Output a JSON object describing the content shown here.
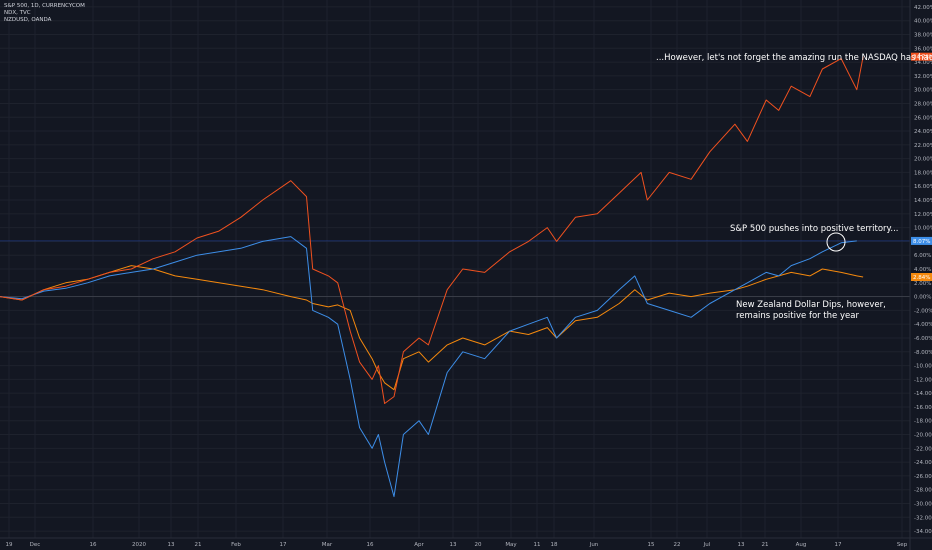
{
  "legend": {
    "symbols": [
      "S&P 500, 1D, CURRENCYCOM",
      "NDX, TVC",
      "NZDUSD, OANDA"
    ]
  },
  "annotations": {
    "nasdaq": "...However, let's not forget the amazing run the NASDAQ has had.",
    "spx": "S&P 500 pushes into positive territory...",
    "nzd_line1": "New Zealand Dollar Dips, however,",
    "nzd_line2": "remains positive for the year"
  },
  "price_labels": {
    "ndx": "34.78%",
    "spx": "8.07%",
    "nzd": "2.84%"
  },
  "colors": {
    "background": "#131722",
    "grid": "#1e222d",
    "ndx": "#f0511f",
    "spx": "#3d8ee8",
    "nzd": "#f5890d",
    "axis_text": "#b2b5be"
  },
  "chart_data": {
    "type": "line",
    "title": "",
    "y_unit": "%",
    "ylim": [
      -35,
      43
    ],
    "y_ticks": [
      "42.00%",
      "40.00%",
      "38.00%",
      "36.00%",
      "34.00%",
      "32.00%",
      "30.00%",
      "28.00%",
      "26.00%",
      "24.00%",
      "22.00%",
      "20.00%",
      "18.00%",
      "16.00%",
      "14.00%",
      "12.00%",
      "10.00%",
      "8.00%",
      "6.00%",
      "4.00%",
      "2.00%",
      "0.00%",
      "-2.00%",
      "-4.00%",
      "-6.00%",
      "-8.00%",
      "-10.00%",
      "-12.00%",
      "-14.00%",
      "-16.00%",
      "-18.00%",
      "-20.00%",
      "-22.00%",
      "-24.00%",
      "-26.00%",
      "-28.00%",
      "-30.00%",
      "-32.00%",
      "-34.00%"
    ],
    "x_ticks": [
      "19",
      "Dec",
      "16",
      "2020",
      "13",
      "21",
      "Feb",
      "17",
      "Mar",
      "16",
      "Apr",
      "13",
      "20",
      "May",
      "11",
      "18",
      "Jun",
      "15",
      "22",
      "Jul",
      "13",
      "21",
      "Aug",
      "17",
      "Sep"
    ],
    "x_range": [
      "2019-11-18",
      "2020-09-04"
    ],
    "grid": true,
    "series": [
      {
        "name": "NDX",
        "points": [
          [
            "2019-11-18",
            0
          ],
          [
            "2019-11-25",
            -0.5
          ],
          [
            "2019-12-02",
            1
          ],
          [
            "2019-12-09",
            1.5
          ],
          [
            "2019-12-16",
            2.5
          ],
          [
            "2019-12-23",
            3.5
          ],
          [
            "2019-12-30",
            4
          ],
          [
            "2020-01-06",
            5.5
          ],
          [
            "2020-01-13",
            6.5
          ],
          [
            "2020-01-20",
            8.5
          ],
          [
            "2020-01-27",
            9.5
          ],
          [
            "2020-02-03",
            11.5
          ],
          [
            "2020-02-10",
            14
          ],
          [
            "2020-02-19",
            16.8
          ],
          [
            "2020-02-24",
            14.5
          ],
          [
            "2020-02-26",
            4
          ],
          [
            "2020-03-02",
            3
          ],
          [
            "2020-03-05",
            2
          ],
          [
            "2020-03-09",
            -5
          ],
          [
            "2020-03-12",
            -9.5
          ],
          [
            "2020-03-16",
            -12
          ],
          [
            "2020-03-18",
            -10
          ],
          [
            "2020-03-20",
            -15.5
          ],
          [
            "2020-03-23",
            -14.5
          ],
          [
            "2020-03-26",
            -8
          ],
          [
            "2020-03-31",
            -6
          ],
          [
            "2020-04-03",
            -7
          ],
          [
            "2020-04-09",
            1
          ],
          [
            "2020-04-14",
            4
          ],
          [
            "2020-04-21",
            3.5
          ],
          [
            "2020-04-29",
            6.5
          ],
          [
            "2020-05-05",
            8
          ],
          [
            "2020-05-11",
            10
          ],
          [
            "2020-05-14",
            8
          ],
          [
            "2020-05-20",
            11.5
          ],
          [
            "2020-05-27",
            12
          ],
          [
            "2020-06-03",
            15
          ],
          [
            "2020-06-10",
            18
          ],
          [
            "2020-06-12",
            14
          ],
          [
            "2020-06-19",
            18
          ],
          [
            "2020-06-26",
            17
          ],
          [
            "2020-07-02",
            21
          ],
          [
            "2020-07-10",
            25
          ],
          [
            "2020-07-14",
            22.5
          ],
          [
            "2020-07-20",
            28.5
          ],
          [
            "2020-07-24",
            27
          ],
          [
            "2020-07-28",
            30.5
          ],
          [
            "2020-08-03",
            29
          ],
          [
            "2020-08-07",
            33
          ],
          [
            "2020-08-13",
            34.5
          ],
          [
            "2020-08-18",
            30
          ],
          [
            "2020-08-20",
            34.78
          ]
        ]
      },
      {
        "name": "S&P 500",
        "points": [
          [
            "2019-11-18",
            0
          ],
          [
            "2019-11-25",
            -0.3
          ],
          [
            "2019-12-02",
            0.8
          ],
          [
            "2019-12-09",
            1.2
          ],
          [
            "2019-12-16",
            2
          ],
          [
            "2019-12-23",
            3
          ],
          [
            "2019-12-30",
            3.5
          ],
          [
            "2020-01-06",
            4
          ],
          [
            "2020-01-13",
            5
          ],
          [
            "2020-01-20",
            6
          ],
          [
            "2020-01-27",
            6.5
          ],
          [
            "2020-02-03",
            7
          ],
          [
            "2020-02-10",
            8
          ],
          [
            "2020-02-19",
            8.7
          ],
          [
            "2020-02-24",
            7
          ],
          [
            "2020-02-26",
            -2
          ],
          [
            "2020-03-02",
            -3
          ],
          [
            "2020-03-05",
            -4
          ],
          [
            "2020-03-09",
            -12
          ],
          [
            "2020-03-12",
            -19
          ],
          [
            "2020-03-16",
            -22
          ],
          [
            "2020-03-18",
            -20
          ],
          [
            "2020-03-20",
            -24
          ],
          [
            "2020-03-23",
            -29
          ],
          [
            "2020-03-26",
            -20
          ],
          [
            "2020-03-31",
            -18
          ],
          [
            "2020-04-03",
            -20
          ],
          [
            "2020-04-09",
            -11
          ],
          [
            "2020-04-14",
            -8
          ],
          [
            "2020-04-21",
            -9
          ],
          [
            "2020-04-29",
            -5
          ],
          [
            "2020-05-05",
            -4
          ],
          [
            "2020-05-11",
            -3
          ],
          [
            "2020-05-14",
            -6
          ],
          [
            "2020-05-20",
            -3
          ],
          [
            "2020-05-27",
            -2
          ],
          [
            "2020-06-03",
            1
          ],
          [
            "2020-06-08",
            3
          ],
          [
            "2020-06-12",
            -1
          ],
          [
            "2020-06-19",
            -2
          ],
          [
            "2020-06-26",
            -3
          ],
          [
            "2020-07-02",
            -1
          ],
          [
            "2020-07-10",
            1
          ],
          [
            "2020-07-14",
            2
          ],
          [
            "2020-07-20",
            3.5
          ],
          [
            "2020-07-24",
            3
          ],
          [
            "2020-07-28",
            4.5
          ],
          [
            "2020-08-03",
            5.5
          ],
          [
            "2020-08-07",
            6.5
          ],
          [
            "2020-08-13",
            7.8
          ],
          [
            "2020-08-18",
            8.07
          ]
        ]
      },
      {
        "name": "NZDUSD",
        "points": [
          [
            "2019-11-18",
            0
          ],
          [
            "2019-11-25",
            -0.5
          ],
          [
            "2019-12-02",
            1
          ],
          [
            "2019-12-09",
            2
          ],
          [
            "2019-12-16",
            2.5
          ],
          [
            "2019-12-23",
            3.5
          ],
          [
            "2019-12-30",
            4.5
          ],
          [
            "2020-01-06",
            4
          ],
          [
            "2020-01-13",
            3
          ],
          [
            "2020-01-20",
            2.5
          ],
          [
            "2020-01-27",
            2
          ],
          [
            "2020-02-03",
            1.5
          ],
          [
            "2020-02-10",
            1
          ],
          [
            "2020-02-19",
            0
          ],
          [
            "2020-02-24",
            -0.5
          ],
          [
            "2020-02-26",
            -1
          ],
          [
            "2020-03-02",
            -1.5
          ],
          [
            "2020-03-05",
            -1.2
          ],
          [
            "2020-03-09",
            -2
          ],
          [
            "2020-03-12",
            -6
          ],
          [
            "2020-03-16",
            -9
          ],
          [
            "2020-03-18",
            -11
          ],
          [
            "2020-03-20",
            -12.5
          ],
          [
            "2020-03-23",
            -13.5
          ],
          [
            "2020-03-26",
            -9
          ],
          [
            "2020-03-31",
            -8
          ],
          [
            "2020-04-03",
            -9.5
          ],
          [
            "2020-04-09",
            -7
          ],
          [
            "2020-04-14",
            -6
          ],
          [
            "2020-04-21",
            -7
          ],
          [
            "2020-04-29",
            -5
          ],
          [
            "2020-05-05",
            -5.5
          ],
          [
            "2020-05-11",
            -4.5
          ],
          [
            "2020-05-14",
            -6
          ],
          [
            "2020-05-20",
            -3.5
          ],
          [
            "2020-05-27",
            -3
          ],
          [
            "2020-06-03",
            -1
          ],
          [
            "2020-06-08",
            1
          ],
          [
            "2020-06-12",
            -0.5
          ],
          [
            "2020-06-19",
            0.5
          ],
          [
            "2020-06-26",
            0
          ],
          [
            "2020-07-02",
            0.5
          ],
          [
            "2020-07-10",
            1
          ],
          [
            "2020-07-14",
            1.5
          ],
          [
            "2020-07-20",
            2.5
          ],
          [
            "2020-07-24",
            3
          ],
          [
            "2020-07-28",
            3.5
          ],
          [
            "2020-08-03",
            3
          ],
          [
            "2020-08-07",
            4
          ],
          [
            "2020-08-13",
            3.5
          ],
          [
            "2020-08-18",
            3
          ],
          [
            "2020-08-20",
            2.84
          ]
        ]
      }
    ]
  }
}
